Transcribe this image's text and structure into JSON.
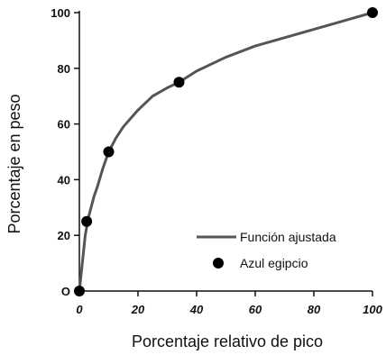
{
  "chart_data": {
    "type": "line",
    "title": "",
    "xlabel": "Porcentaje relativo de pico",
    "ylabel": "Porcentaje en peso",
    "xlim": [
      0,
      100
    ],
    "ylim": [
      0,
      100
    ],
    "x_ticks": [
      {
        "value": 0,
        "label": "0"
      },
      {
        "value": 20,
        "label": "20"
      },
      {
        "value": 40,
        "label": "40"
      },
      {
        "value": 60,
        "label": "60"
      },
      {
        "value": 80,
        "label": "80"
      },
      {
        "value": 100,
        "label": "100"
      }
    ],
    "y_ticks": [
      {
        "value": 0,
        "label": "O"
      },
      {
        "value": 20,
        "label": "20"
      },
      {
        "value": 40,
        "label": "40"
      },
      {
        "value": 60,
        "label": "60"
      },
      {
        "value": 80,
        "label": "80"
      },
      {
        "value": 100,
        "label": "100"
      }
    ],
    "grid": false,
    "legend_position": "bottom-right",
    "series": [
      {
        "name": "Función ajustada",
        "kind": "line",
        "color": "#555555",
        "x": [
          0,
          1,
          2,
          3,
          4,
          5,
          6,
          8,
          10,
          12.5,
          15,
          20,
          25,
          30,
          34,
          40,
          50,
          60,
          70,
          80,
          90,
          100
        ],
        "y": [
          0,
          10,
          20,
          26,
          30,
          34,
          37,
          44,
          50,
          55,
          59,
          65,
          70,
          73,
          75,
          79,
          84,
          88,
          91,
          94,
          97,
          100
        ]
      },
      {
        "name": "Azul egipcio",
        "kind": "scatter",
        "color": "#000000",
        "x": [
          0,
          2.5,
          10,
          34,
          100
        ],
        "y": [
          0,
          25,
          50,
          75,
          100
        ]
      }
    ]
  }
}
